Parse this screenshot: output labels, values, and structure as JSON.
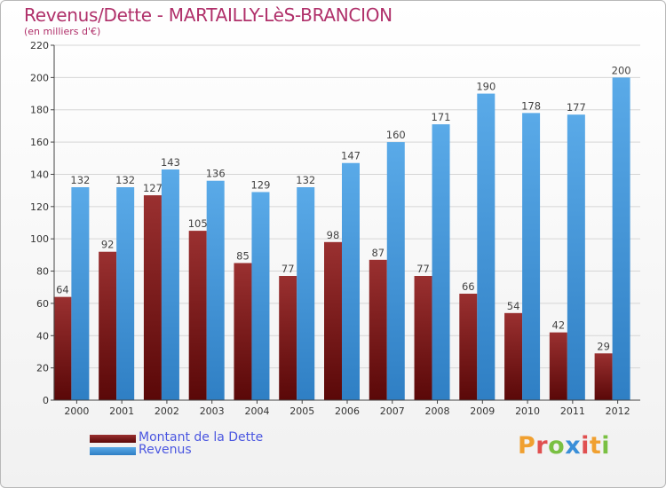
{
  "title": "Revenus/Dette - MARTAILLY-LèS-BRANCION",
  "subtitle": "(en milliers d'€)",
  "logo": {
    "text": "Proxiti",
    "colors": [
      "#f0a030",
      "#e05050",
      "#7ac043",
      "#3a8fd8",
      "#e05050",
      "#f0a030",
      "#7ac043"
    ]
  },
  "chart_data": {
    "type": "bar",
    "title": "Revenus/Dette - MARTAILLY-LèS-BRANCION",
    "ylabel": "(en milliers d'€)",
    "categories": [
      "2000",
      "2001",
      "2002",
      "2003",
      "2004",
      "2005",
      "2006",
      "2007",
      "2008",
      "2009",
      "2010",
      "2011",
      "2012"
    ],
    "series": [
      {
        "name": "Montant de la Dette",
        "color": "#7a1a1a",
        "values": [
          64,
          92,
          127,
          105,
          85,
          77,
          98,
          87,
          77,
          66,
          54,
          42,
          29
        ]
      },
      {
        "name": "Revenus",
        "color": "#4a9fe0",
        "values": [
          132,
          132,
          143,
          136,
          129,
          132,
          147,
          160,
          171,
          190,
          178,
          177,
          200
        ]
      }
    ],
    "ylim": [
      0,
      220
    ],
    "yticks": [
      0,
      20,
      40,
      60,
      80,
      100,
      120,
      140,
      160,
      180,
      200,
      220
    ],
    "grid": true,
    "legend_position": "bottom-left"
  }
}
